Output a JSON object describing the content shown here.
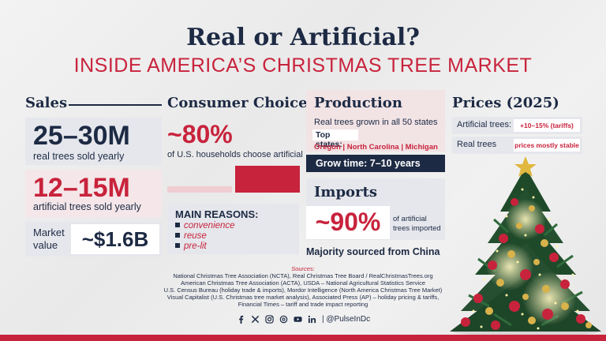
{
  "header": {
    "title": "Real or Artificial?",
    "subtitle": "INSIDE AMERICA’S CHRISTMAS TREE MARKET"
  },
  "sales": {
    "heading": "Sales",
    "real_value": "25–30M",
    "real_label": "real trees sold yearly",
    "artificial_value": "12–15M",
    "artificial_label": "artificial trees sold yearly",
    "market_label_1": "Market",
    "market_label_2": "value",
    "market_value": "~$1.6B"
  },
  "consumer": {
    "heading": "Consumer Choice",
    "share": "~80%",
    "share_label": "of U.S. households choose artificial",
    "artificial_share_pct": 80,
    "reasons_heading": "MAIN REASONS:",
    "reasons": [
      "convenience",
      "reuse",
      "pre-lit"
    ]
  },
  "production": {
    "heading": "Production",
    "states_text": "Real trees grown in all 50 states",
    "top_states_label": "Top states:",
    "top_states": "Oregon | North Carolina | Michigan",
    "grow_time": "Grow time: 7–10 years"
  },
  "imports": {
    "heading": "Imports",
    "share": "~90%",
    "share_label_1": "of artificial",
    "share_label_2": "trees imported",
    "source": "Majority sourced from China"
  },
  "prices": {
    "heading": "Prices (2025)",
    "rows": [
      {
        "label": "Artificial trees:",
        "value": "+10–15% (tariffs)"
      },
      {
        "label": "Real trees",
        "value": "prices mostly stable"
      }
    ]
  },
  "sources": {
    "heading": "Sources:",
    "lines": [
      "National Christmas Tree Association (NCTA), Real Christmas Tree Board / RealChristmasTrees.org",
      "American Christmas Tree Association (ACTA), USDA – National Agricultural Statistics Service",
      "U.S. Census Bureau (holiday trade & imports), Mordor Intelligence (North America Christmas Tree Market)",
      "Visual Capitalist (U.S. Christmas tree market analysis), Associated Press (AP) – holiday pricing & tariffs,",
      "Financial Times – tariff and trade impact reporting"
    ]
  },
  "social": {
    "handle": "| @PulseInDc",
    "icons": [
      "facebook-icon",
      "x-icon",
      "instagram-icon",
      "threads-icon",
      "youtube-icon",
      "linkedin-icon"
    ]
  },
  "colors": {
    "navy": "#1d2a44",
    "red": "#c8233c",
    "panel": "#e5e7ec",
    "pink_panel": "#f5e7e9"
  }
}
